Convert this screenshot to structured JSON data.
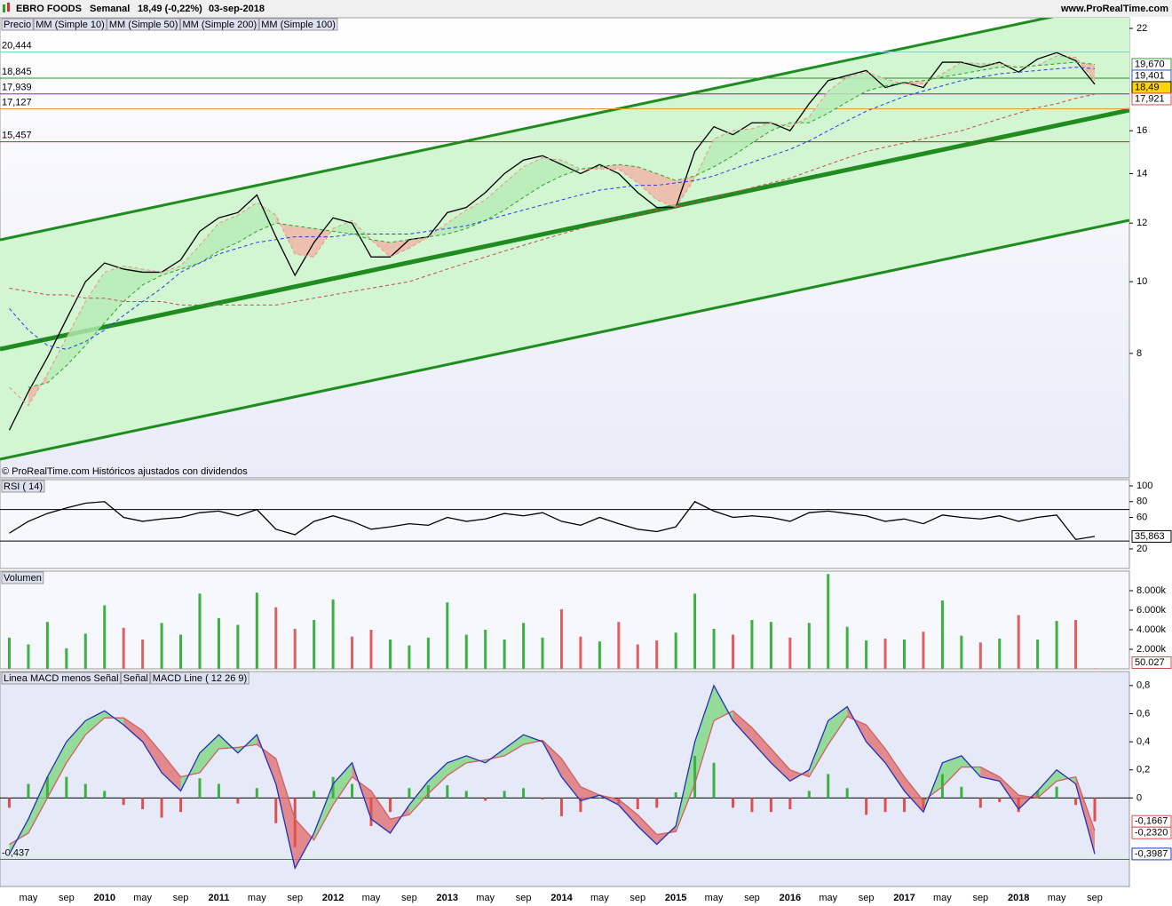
{
  "header": {
    "name": "EBRO FOODS",
    "period": "Semanal",
    "quote": "18,49 (-0,22%)",
    "date": "03-sep-2018",
    "site": "www.ProRealTime.com"
  },
  "chart_data": [
    {
      "type": "line",
      "log_scale": true,
      "footnote": "© ProRealTime.com  Históricos ajustados con dividendos",
      "ylim": [
        5.43,
        22.74
      ],
      "yticks": [
        8,
        10,
        12,
        14,
        16,
        22
      ],
      "levels": [
        {
          "value": 20.444,
          "label": "20,444",
          "color": "#7fd0d0"
        },
        {
          "value": 18.845,
          "label": "18,845",
          "color": "#2e8b2e"
        },
        {
          "value": 17.939,
          "label": "17,939",
          "color": "#7b2fa0"
        },
        {
          "value": 17.127,
          "label": "17,127",
          "color": "#e0a030"
        },
        {
          "value": 15.457,
          "label": "15,457",
          "color": "#d02020"
        }
      ],
      "fill_between": [
        1,
        2
      ],
      "fill_colors": [
        "#b6ecb6",
        "#f2b3a6"
      ],
      "series": [
        {
          "name": "Precio",
          "color": "#000000",
          "values": [
            6.3,
            7.1,
            7.9,
            8.9,
            10.0,
            10.6,
            10.4,
            10.3,
            10.3,
            10.7,
            11.7,
            12.2,
            12.4,
            13.1,
            11.5,
            10.2,
            11.3,
            12.2,
            12.0,
            10.8,
            10.8,
            11.4,
            11.5,
            12.4,
            12.6,
            13.2,
            14.0,
            14.6,
            14.8,
            14.4,
            14.0,
            14.4,
            14.0,
            13.2,
            12.6,
            12.6,
            15.0,
            16.2,
            15.8,
            16.4,
            16.4,
            16.0,
            17.4,
            18.7,
            19.0,
            19.3,
            18.3,
            18.6,
            18.3,
            19.8,
            19.8,
            19.5,
            19.8,
            19.2,
            20.0,
            20.4,
            19.9,
            18.49
          ]
        },
        {
          "name": "MM (Simple 10)",
          "color": "#f08c8c",
          "dashed": true,
          "values": [
            7.2,
            6.8,
            7.5,
            8.4,
            9.4,
            10.3,
            10.5,
            10.4,
            10.3,
            10.5,
            11.2,
            12.0,
            12.3,
            12.8,
            12.3,
            10.9,
            10.8,
            11.8,
            12.1,
            11.4,
            10.8,
            11.1,
            11.5,
            12.0,
            12.5,
            12.9,
            13.6,
            14.3,
            14.7,
            14.6,
            14.2,
            14.2,
            14.2,
            13.6,
            12.9,
            12.6,
            13.8,
            15.6,
            16.0,
            16.1,
            16.4,
            16.2,
            16.7,
            18.1,
            18.9,
            19.2,
            18.8,
            18.5,
            18.5,
            19.1,
            19.8,
            19.7,
            19.7,
            19.5,
            19.6,
            20.2,
            20.1,
            18.7
          ]
        },
        {
          "name": "MM (Simple 50)",
          "color": "#2ca02c",
          "dashed": true,
          "values": [
            null,
            7.2,
            7.3,
            7.7,
            8.2,
            8.8,
            9.4,
            9.9,
            10.2,
            10.4,
            10.6,
            11.0,
            11.3,
            11.7,
            12.0,
            11.9,
            11.8,
            11.7,
            11.6,
            11.4,
            11.3,
            11.4,
            11.5,
            11.6,
            11.8,
            12.1,
            12.5,
            13.0,
            13.5,
            13.9,
            14.2,
            14.3,
            14.4,
            14.3,
            14.0,
            13.7,
            13.9,
            14.3,
            14.8,
            15.4,
            16.0,
            16.4,
            16.4,
            16.9,
            17.5,
            18.1,
            18.4,
            18.6,
            18.7,
            18.9,
            19.1,
            19.3,
            19.5,
            19.5,
            19.6,
            19.7,
            19.8,
            19.67
          ]
        },
        {
          "name": "MM (Simple 200)",
          "color": "#c0504d",
          "dashed": true,
          "values": [
            9.8,
            9.7,
            9.6,
            9.6,
            9.5,
            9.5,
            9.4,
            9.4,
            9.4,
            9.3,
            9.3,
            9.3,
            9.3,
            9.3,
            9.3,
            9.4,
            9.5,
            9.6,
            9.7,
            9.8,
            9.9,
            10.0,
            10.2,
            10.4,
            10.6,
            10.8,
            11.0,
            11.2,
            11.4,
            11.6,
            11.8,
            12.0,
            12.2,
            12.3,
            12.5,
            12.6,
            12.8,
            13.0,
            13.2,
            13.4,
            13.6,
            13.8,
            14.1,
            14.4,
            14.7,
            15.0,
            15.2,
            15.4,
            15.6,
            15.8,
            16.0,
            16.3,
            16.6,
            16.9,
            17.2,
            17.4,
            17.7,
            17.921
          ]
        },
        {
          "name": "MM (Simple 100)",
          "color": "#2040e0",
          "dashed": true,
          "values": [
            9.2,
            8.6,
            8.2,
            8.1,
            8.3,
            8.6,
            9.0,
            9.4,
            9.8,
            10.3,
            10.6,
            10.9,
            11.1,
            11.3,
            11.4,
            11.5,
            11.5,
            11.5,
            11.6,
            11.6,
            11.6,
            11.6,
            11.7,
            11.8,
            11.9,
            12.1,
            12.3,
            12.5,
            12.7,
            12.9,
            13.1,
            13.3,
            13.4,
            13.5,
            13.5,
            13.6,
            13.7,
            13.9,
            14.2,
            14.5,
            14.8,
            15.1,
            15.5,
            16.0,
            16.5,
            17.0,
            17.4,
            17.8,
            18.1,
            18.4,
            18.7,
            18.9,
            19.1,
            19.2,
            19.3,
            19.4,
            19.5,
            19.401
          ]
        }
      ],
      "tags": [
        {
          "value": 19.67,
          "label": "19,670",
          "color": "#3a9a3a"
        },
        {
          "value": 19.401,
          "label": "19,401",
          "color": "#3050d0"
        },
        {
          "value": 18.49,
          "label": "18,49",
          "color": "#000000",
          "fill": "#ffd400"
        },
        {
          "value": 17.921,
          "label": "17,921",
          "color": "#d05050"
        }
      ]
    },
    {
      "type": "line",
      "title": "RSI ( 14)",
      "ylim": [
        -4.8,
        107.9
      ],
      "yticks": [
        20,
        60,
        80,
        100
      ],
      "levels": [
        30,
        70
      ],
      "series": [
        {
          "name": "RSI ( 14)",
          "color": "#000000",
          "values": [
            40,
            55,
            65,
            72,
            78,
            80,
            60,
            55,
            58,
            60,
            66,
            68,
            62,
            70,
            45,
            38,
            55,
            62,
            55,
            45,
            48,
            52,
            50,
            60,
            55,
            58,
            65,
            62,
            66,
            55,
            50,
            60,
            52,
            45,
            42,
            48,
            80,
            68,
            60,
            62,
            60,
            55,
            66,
            68,
            65,
            62,
            55,
            58,
            52,
            63,
            60,
            58,
            62,
            55,
            60,
            63,
            32,
            35.863
          ]
        }
      ],
      "tags": [
        {
          "value": 35.863,
          "label": "35,863",
          "color": "#000000"
        }
      ]
    },
    {
      "type": "bar",
      "title": "Volumen",
      "ylim": [
        0,
        10000
      ],
      "yticks": [
        {
          "value": 2000,
          "label": "2.000k"
        },
        {
          "value": 4000,
          "label": "4.000k"
        },
        {
          "value": 6000,
          "label": "6.000k"
        },
        {
          "value": 8000,
          "label": "8.000k"
        }
      ],
      "series": [
        {
          "name": "Volumen",
          "color": "#e06060",
          "up_color": "#3cb043",
          "values": [
            3200,
            2500,
            4800,
            2100,
            3600,
            6500,
            4200,
            3000,
            4700,
            3500,
            7700,
            5200,
            4500,
            7800,
            6300,
            4100,
            5000,
            7100,
            3300,
            4000,
            3000,
            2400,
            3200,
            6800,
            3500,
            4000,
            3000,
            4700,
            3200,
            6100,
            3300,
            2800,
            4800,
            2500,
            2900,
            3700,
            7700,
            4100,
            3500,
            5000,
            4800,
            3200,
            4700,
            9700,
            4300,
            2900,
            3100,
            3000,
            3800,
            7000,
            3400,
            2700,
            3100,
            5500,
            3000,
            4900,
            5000,
            50.027
          ]
        }
      ],
      "tags": [
        {
          "value": 50.027,
          "color": "#d05050"
        }
      ]
    },
    {
      "type": "line",
      "ylim": [
        -0.63,
        0.9
      ],
      "yticks": [
        0,
        {
          "value": 0.2,
          "label": "0,2"
        },
        {
          "value": 0.4,
          "label": "0,4"
        },
        {
          "value": 0.6,
          "label": "0,6"
        },
        {
          "value": 0.8,
          "label": "0,8"
        }
      ],
      "levels": [
        0,
        {
          "value": -0.437,
          "label": "-0,437",
          "color": "#2e8b2e"
        }
      ],
      "fill_between": [
        2,
        1
      ],
      "fill_colors": [
        "#7fd67f",
        "#e07070"
      ],
      "categories": [
        null,
        "may",
        null,
        "sep",
        null,
        "2010",
        null,
        "may",
        null,
        "sep",
        null,
        "2011",
        null,
        "may",
        null,
        "sep",
        null,
        "2012",
        null,
        "may",
        null,
        "sep",
        null,
        "2013",
        null,
        "may",
        null,
        "sep",
        null,
        "2014",
        null,
        "may",
        null,
        "sep",
        null,
        "2015",
        null,
        "may",
        null,
        "sep",
        null,
        "2016",
        null,
        "may",
        null,
        "sep",
        null,
        "2017",
        null,
        "may",
        null,
        "sep",
        null,
        "2018",
        null,
        "may",
        null,
        "sep"
      ],
      "series": [
        {
          "name": "Linea MACD menos Señal",
          "type": "bar",
          "color": "#e05050",
          "up_color": "#3cb043",
          "values": [
            -0.07,
            0.1,
            0.15,
            0.15,
            0.1,
            0.05,
            -0.05,
            -0.08,
            -0.14,
            -0.1,
            0.14,
            0.1,
            -0.04,
            0.07,
            -0.18,
            -0.35,
            0.05,
            0.15,
            0.1,
            -0.2,
            -0.1,
            0.07,
            0.09,
            0.09,
            0.05,
            -0.02,
            0.05,
            0.07,
            -0.01,
            -0.13,
            -0.1,
            0,
            -0.04,
            -0.08,
            -0.07,
            0.04,
            0.3,
            0.25,
            -0.07,
            -0.1,
            -0.1,
            -0.08,
            0.05,
            0.17,
            0.07,
            -0.12,
            -0.1,
            -0.1,
            -0.08,
            0.17,
            0.08,
            -0.07,
            -0.03,
            -0.1,
            0.05,
            0.08,
            -0.05,
            -0.1667
          ]
        },
        {
          "name": "Señal",
          "color": "#d06060",
          "values": [
            -0.33,
            -0.25,
            0,
            0.25,
            0.45,
            0.57,
            0.57,
            0.48,
            0.32,
            0.15,
            0.18,
            0.35,
            0.36,
            0.38,
            0.28,
            -0.15,
            -0.3,
            -0.05,
            0.15,
            0.05,
            -0.15,
            -0.12,
            0.03,
            0.16,
            0.25,
            0.27,
            0.3,
            0.38,
            0.41,
            0.28,
            0.08,
            0.02,
            -0.01,
            -0.12,
            -0.26,
            -0.24,
            0.1,
            0.55,
            0.62,
            0.5,
            0.35,
            0.2,
            0.15,
            0.38,
            0.58,
            0.52,
            0.35,
            0.15,
            -0.02,
            0.08,
            0.22,
            0.22,
            0.15,
            0.02,
            0,
            0.12,
            0.15,
            -0.232
          ]
        },
        {
          "name": "MACD Line ( 12 26 9)",
          "color": "#2030c0",
          "values": [
            -0.4,
            -0.15,
            0.15,
            0.4,
            0.55,
            0.62,
            0.52,
            0.4,
            0.18,
            0.05,
            0.32,
            0.45,
            0.32,
            0.45,
            0.1,
            -0.5,
            -0.25,
            0.1,
            0.25,
            -0.15,
            -0.25,
            -0.05,
            0.12,
            0.25,
            0.3,
            0.25,
            0.35,
            0.45,
            0.4,
            0.15,
            -0.02,
            0.02,
            -0.05,
            -0.2,
            -0.33,
            -0.2,
            0.4,
            0.8,
            0.55,
            0.4,
            0.25,
            0.12,
            0.2,
            0.55,
            0.65,
            0.4,
            0.25,
            0.05,
            -0.1,
            0.25,
            0.3,
            0.15,
            0.12,
            -0.08,
            0.05,
            0.2,
            0.1,
            -0.3987
          ]
        }
      ],
      "tags": [
        {
          "value": -0.1667,
          "label": "-0,1667",
          "color": "#d05050"
        },
        {
          "value": -0.232,
          "label": "-0,2320",
          "color": "#d05050"
        },
        {
          "value": -0.3987,
          "label": "-0,3987",
          "color": "#2030c0"
        }
      ]
    }
  ]
}
